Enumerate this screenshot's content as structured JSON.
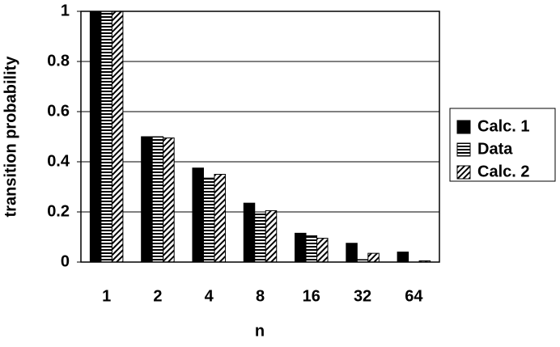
{
  "chart_data": {
    "type": "bar",
    "x_label": "n",
    "y_label": "transition probability",
    "categories": [
      "1",
      "2",
      "4",
      "8",
      "16",
      "32",
      "64"
    ],
    "series": [
      {
        "name": "Calc. 1",
        "color": "#000000",
        "pattern": "solid",
        "values": [
          1,
          0.5,
          0.375,
          0.235,
          0.115,
          0.075,
          0.04
        ]
      },
      {
        "name": "Data",
        "color": "#000000",
        "pattern": "horizontal",
        "values": [
          1,
          0.5,
          0.335,
          0.2,
          0.105,
          0.01,
          0
        ]
      },
      {
        "name": "Calc. 2",
        "color": "#000000",
        "pattern": "diagonal",
        "values": [
          1,
          0.495,
          0.35,
          0.205,
          0.095,
          0.035,
          0.005
        ]
      }
    ],
    "ylim": [
      0,
      1
    ],
    "yticks": [
      0,
      0.2,
      0.4,
      0.6,
      0.8,
      1
    ],
    "grid": true,
    "legend": "right"
  }
}
